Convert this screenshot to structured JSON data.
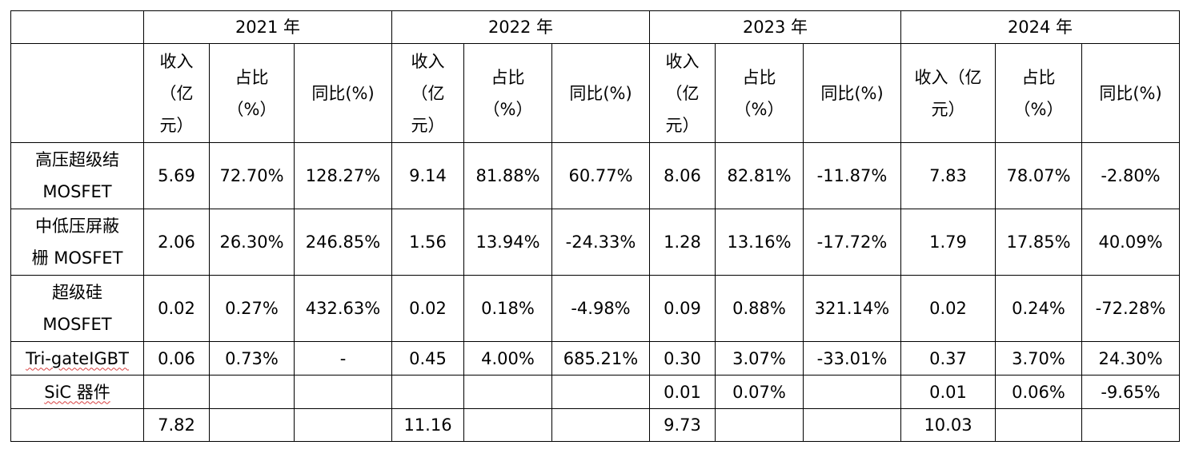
{
  "years": [
    "2021 年",
    "2022 年",
    "2023 年",
    "2024 年"
  ],
  "subheaders": [
    [
      "收入\n（亿\n元）",
      "占比\n（%）",
      "同比(%)"
    ],
    [
      "收入\n（亿\n元）",
      "占比\n（%）",
      "同比(%)"
    ],
    [
      "收入\n（亿\n元）",
      "占比\n（%）",
      "同比(%)"
    ],
    [
      "收入（亿\n元）",
      "占比\n（%）",
      "同比(%)"
    ]
  ],
  "rows": [
    {
      "label": "高压超级结\nMOSFET",
      "cells": [
        "5.69",
        "72.70%",
        "128.27%",
        "9.14",
        "81.88%",
        "60.77%",
        "8.06",
        "82.81%",
        "-11.87%",
        "7.83",
        "78.07%",
        "-2.80%"
      ]
    },
    {
      "label": "中低压屏蔽\n栅 MOSFET",
      "cells": [
        "2.06",
        "26.30%",
        "246.85%",
        "1.56",
        "13.94%",
        "-24.33%",
        "1.28",
        "13.16%",
        "-17.72%",
        "1.79",
        "17.85%",
        "40.09%"
      ]
    },
    {
      "label": "超级硅\nMOSFET",
      "cells": [
        "0.02",
        "0.27%",
        "432.63%",
        "0.02",
        "0.18%",
        "-4.98%",
        "0.09",
        "0.88%",
        "321.14%",
        "0.02",
        "0.24%",
        "-72.28%"
      ]
    },
    {
      "label": "Tri-gateIGBT",
      "cells": [
        "0.06",
        "0.73%",
        "-",
        "0.45",
        "4.00%",
        "685.21%",
        "0.30",
        "3.07%",
        "-33.01%",
        "0.37",
        "3.70%",
        "24.30%"
      ]
    },
    {
      "label": "SiC 器件",
      "cells": [
        "",
        "",
        "",
        "",
        "",
        "",
        "0.01",
        "0.07%",
        "",
        "0.01",
        "0.06%",
        "-9.65%"
      ]
    },
    {
      "label": "",
      "cells": [
        "7.82",
        "",
        "",
        "11.16",
        "",
        "",
        "9.73",
        "",
        "",
        "10.03",
        "",
        ""
      ]
    }
  ]
}
